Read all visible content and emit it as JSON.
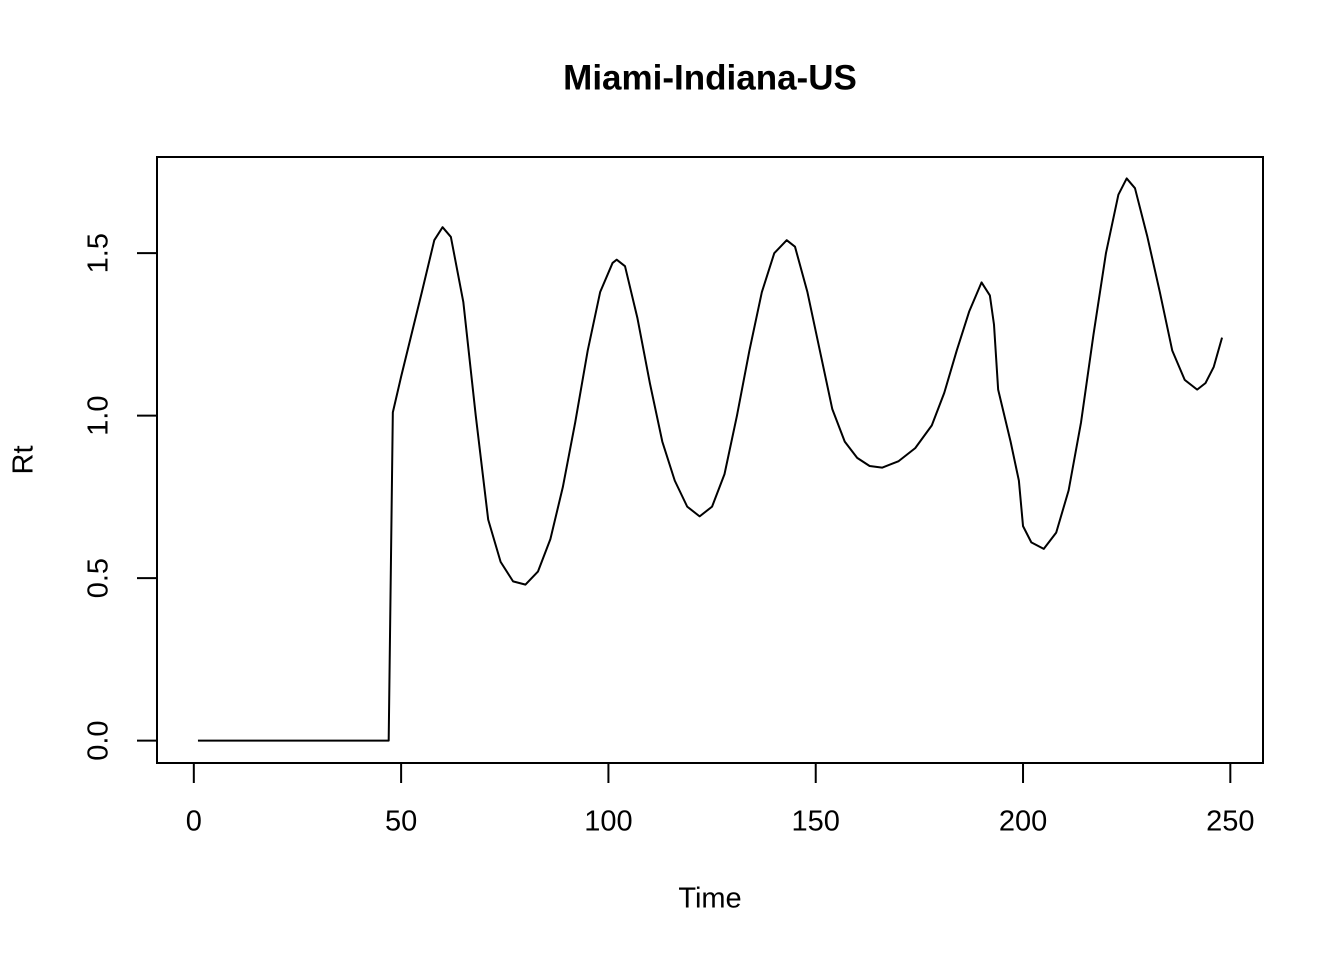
{
  "chart_data": {
    "type": "line",
    "title": "Miami-Indiana-US",
    "x_label": "Time",
    "y_label": "Rt",
    "x": [
      1,
      47,
      48,
      50,
      55,
      58,
      60,
      62,
      65,
      68,
      71,
      74,
      77,
      80,
      83,
      86,
      89,
      92,
      95,
      98,
      101,
      102,
      104,
      107,
      110,
      113,
      116,
      119,
      122,
      125,
      128,
      131,
      134,
      137,
      140,
      143,
      145,
      148,
      151,
      154,
      157,
      160,
      163,
      166,
      170,
      174,
      178,
      181,
      184,
      187,
      190,
      192,
      193,
      194,
      197,
      199,
      200,
      202,
      205,
      208,
      211,
      214,
      217,
      220,
      223,
      225,
      227,
      230,
      233,
      236,
      239,
      242,
      244,
      246,
      248
    ],
    "values": [
      0,
      0,
      1.01,
      1.12,
      1.38,
      1.54,
      1.58,
      1.55,
      1.35,
      1.0,
      0.68,
      0.55,
      0.49,
      0.48,
      0.52,
      0.62,
      0.78,
      0.98,
      1.2,
      1.38,
      1.47,
      1.48,
      1.46,
      1.3,
      1.1,
      0.92,
      0.8,
      0.72,
      0.69,
      0.72,
      0.82,
      1.0,
      1.2,
      1.38,
      1.5,
      1.54,
      1.52,
      1.38,
      1.2,
      1.02,
      0.92,
      0.87,
      0.845,
      0.84,
      0.86,
      0.9,
      0.97,
      1.07,
      1.2,
      1.32,
      1.41,
      1.37,
      1.28,
      1.08,
      0.92,
      0.8,
      0.66,
      0.61,
      0.59,
      0.64,
      0.77,
      0.98,
      1.25,
      1.5,
      1.68,
      1.73,
      1.7,
      1.55,
      1.38,
      1.2,
      1.11,
      1.08,
      1.1,
      1.15,
      1.24
    ],
    "color": "#000000",
    "xlim": [
      -8.88,
      257.88
    ],
    "xticks": [
      0,
      50,
      100,
      150,
      200,
      250
    ],
    "ylim": [
      -0.069,
      1.796
    ],
    "yticks": [
      {
        "value": 0,
        "label": "0.0"
      },
      0.5,
      {
        "value": 1,
        "label": "1.0"
      },
      1.5
    ]
  }
}
